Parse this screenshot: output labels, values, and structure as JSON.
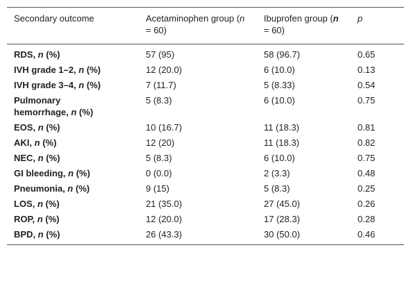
{
  "table": {
    "header": [
      "Secondary outcome",
      "Acetaminophen group (n = 60)",
      "Ibuprofen group (n = 60)",
      "p"
    ],
    "rows": [
      [
        "RDS, n (%)",
        "57 (95)",
        "58 (96.7)",
        "0.65"
      ],
      [
        "IVH grade 1–2, n (%)",
        "12 (20.0)",
        "6 (10.0)",
        "0.13"
      ],
      [
        "IVH grade 3–4, n (%)",
        "7 (11.7)",
        "5 (8.33)",
        "0.54"
      ],
      [
        "Pulmonary hemorrhage, n (%)",
        "5 (8.3)",
        "6 (10.0)",
        "0.75"
      ],
      [
        "EOS, n (%)",
        "10 (16.7)",
        "11 (18.3)",
        "0.81"
      ],
      [
        "AKI, n (%)",
        "12 (20)",
        "11 (18.3)",
        "0.82"
      ],
      [
        "NEC, n (%)",
        "5 (8.3)",
        "6 (10.0)",
        "0.75"
      ],
      [
        "GI bleeding, n (%)",
        "0 (0.0)",
        "2 (3.3)",
        "0.48"
      ],
      [
        "Pneumonia, n (%)",
        "9 (15)",
        "5 (8.3)",
        "0.25"
      ],
      [
        "LOS, n (%)",
        "21 (35.0)",
        "27 (45.0)",
        "0.26"
      ],
      [
        "ROP, n (%)",
        "12 (20.0)",
        "17 (28.3)",
        "0.28"
      ],
      [
        "BPD, n (%)",
        "26 (43.3)",
        "30 (50.0)",
        "0.46"
      ]
    ]
  }
}
